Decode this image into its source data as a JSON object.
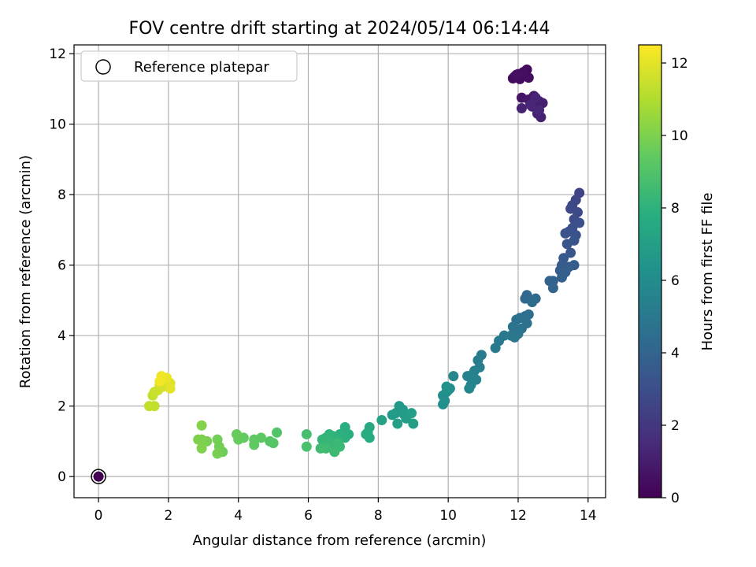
{
  "chart_data": {
    "type": "scatter",
    "title": "FOV centre drift starting at 2024/05/14 06:14:44",
    "xlabel": "Angular distance from reference (arcmin)",
    "ylabel": "Rotation from reference (arcmin)",
    "xlim": [
      -0.7,
      14.5
    ],
    "ylim": [
      -0.6,
      12.25
    ],
    "xticks": [
      0,
      2,
      4,
      6,
      8,
      10,
      12,
      14
    ],
    "yticks": [
      0,
      2,
      4,
      6,
      8,
      10,
      12
    ],
    "grid": true,
    "legend": {
      "position": "top-left",
      "entries": [
        "Reference platepar"
      ]
    },
    "colorbar": {
      "label": "Hours from first FF file",
      "range": [
        0,
        12.5
      ],
      "ticks": [
        0,
        2,
        4,
        6,
        8,
        10,
        12
      ],
      "colormap": "viridis"
    },
    "reference_point": {
      "x": 0,
      "y": 0,
      "hours": 0
    },
    "series": [
      {
        "points": [
          [
            11.9,
            11.35,
            0.1
          ],
          [
            12.0,
            11.42,
            0.15
          ],
          [
            12.1,
            11.38,
            0.2
          ],
          [
            12.2,
            11.45,
            0.25
          ],
          [
            12.25,
            11.55,
            0.3
          ],
          [
            11.85,
            11.3,
            0.35
          ],
          [
            12.05,
            11.28,
            0.4
          ],
          [
            12.3,
            11.32,
            0.45
          ],
          [
            12.15,
            11.48,
            0.5
          ],
          [
            11.95,
            11.4,
            0.55
          ],
          [
            12.1,
            10.75,
            0.7
          ],
          [
            12.3,
            10.7,
            0.8
          ],
          [
            12.45,
            10.8,
            0.9
          ],
          [
            12.6,
            10.65,
            1.0
          ],
          [
            12.7,
            10.6,
            1.05
          ],
          [
            12.4,
            10.5,
            1.1
          ],
          [
            12.55,
            10.3,
            1.15
          ],
          [
            12.65,
            10.2,
            1.2
          ],
          [
            12.1,
            10.45,
            1.25
          ],
          [
            12.5,
            10.75,
            1.3
          ],
          [
            12.35,
            10.55,
            1.35
          ],
          [
            12.6,
            10.4,
            1.4
          ]
        ]
      },
      {
        "points": [
          [
            13.75,
            8.05,
            2.5
          ],
          [
            13.65,
            7.85,
            2.6
          ],
          [
            13.55,
            7.7,
            2.7
          ],
          [
            13.5,
            7.6,
            2.75
          ],
          [
            13.7,
            7.5,
            2.8
          ],
          [
            13.6,
            7.3,
            2.9
          ],
          [
            13.75,
            7.2,
            3.0
          ],
          [
            13.55,
            7.05,
            3.05
          ],
          [
            13.45,
            6.95,
            3.1
          ],
          [
            13.35,
            6.9,
            3.15
          ],
          [
            13.65,
            6.85,
            3.2
          ],
          [
            13.6,
            6.7,
            3.25
          ],
          [
            13.4,
            6.6,
            3.3
          ],
          [
            13.5,
            6.35,
            3.4
          ],
          [
            13.3,
            6.2,
            3.5
          ],
          [
            13.25,
            6.0,
            3.55
          ],
          [
            13.6,
            6.0,
            3.6
          ],
          [
            13.45,
            5.95,
            3.65
          ],
          [
            13.2,
            5.85,
            3.7
          ],
          [
            13.35,
            5.8,
            3.75
          ],
          [
            13.25,
            5.65,
            3.8
          ],
          [
            13.0,
            5.55,
            3.9
          ],
          [
            12.9,
            5.55,
            3.95
          ],
          [
            13.0,
            5.35,
            4.0
          ]
        ]
      },
      {
        "points": [
          [
            12.25,
            5.15,
            4.2
          ],
          [
            12.2,
            5.05,
            4.25
          ],
          [
            12.5,
            5.05,
            4.3
          ],
          [
            12.4,
            4.95,
            4.35
          ],
          [
            12.3,
            4.6,
            4.45
          ],
          [
            12.2,
            4.55,
            4.5
          ],
          [
            12.05,
            4.5,
            4.55
          ],
          [
            11.95,
            4.45,
            4.6
          ],
          [
            12.25,
            4.35,
            4.65
          ],
          [
            12.1,
            4.2,
            4.7
          ],
          [
            11.95,
            4.15,
            4.75
          ],
          [
            11.85,
            4.25,
            4.8
          ],
          [
            12.0,
            4.05,
            4.85
          ],
          [
            11.8,
            4.0,
            4.9
          ],
          [
            11.9,
            3.95,
            4.95
          ],
          [
            11.6,
            4.0,
            5.0
          ],
          [
            11.45,
            3.85,
            5.05
          ],
          [
            11.35,
            3.65,
            5.1
          ],
          [
            10.95,
            3.45,
            5.2
          ],
          [
            10.85,
            3.3,
            5.25
          ],
          [
            10.9,
            3.1,
            5.3
          ],
          [
            10.75,
            3.0,
            5.4
          ],
          [
            10.7,
            2.9,
            5.45
          ],
          [
            10.55,
            2.85,
            5.5
          ],
          [
            10.8,
            2.75,
            5.55
          ],
          [
            10.65,
            2.6,
            5.6
          ],
          [
            10.6,
            2.5,
            5.65
          ],
          [
            10.15,
            2.85,
            5.7
          ]
        ]
      },
      {
        "points": [
          [
            10.05,
            2.5,
            6.0
          ],
          [
            9.95,
            2.4,
            6.05
          ],
          [
            9.85,
            2.3,
            6.1
          ],
          [
            9.9,
            2.15,
            6.15
          ],
          [
            9.85,
            2.05,
            6.2
          ],
          [
            10.0,
            2.45,
            6.25
          ],
          [
            9.95,
            2.55,
            6.3
          ],
          [
            8.6,
            2.0,
            6.6
          ],
          [
            8.7,
            1.9,
            6.7
          ],
          [
            8.5,
            1.8,
            6.75
          ],
          [
            8.4,
            1.75,
            6.8
          ],
          [
            8.75,
            1.75,
            6.85
          ],
          [
            8.8,
            1.65,
            6.9
          ],
          [
            8.95,
            1.8,
            6.95
          ],
          [
            9.0,
            1.5,
            7.0
          ],
          [
            8.55,
            1.5,
            7.05
          ],
          [
            8.1,
            1.6,
            7.15
          ]
        ]
      },
      {
        "points": [
          [
            7.75,
            1.4,
            7.5
          ],
          [
            7.7,
            1.25,
            7.55
          ],
          [
            7.75,
            1.1,
            7.6
          ],
          [
            7.65,
            1.2,
            7.65
          ],
          [
            7.05,
            1.4,
            7.8
          ],
          [
            7.15,
            1.2,
            7.85
          ],
          [
            7.05,
            1.1,
            7.9
          ],
          [
            6.9,
            1.2,
            7.95
          ],
          [
            6.85,
            1.05,
            8.0
          ],
          [
            6.7,
            1.15,
            8.05
          ],
          [
            6.6,
            1.2,
            8.1
          ],
          [
            6.5,
            1.1,
            8.15
          ],
          [
            6.4,
            1.05,
            8.2
          ],
          [
            6.55,
            0.95,
            8.25
          ],
          [
            6.7,
            0.9,
            8.3
          ],
          [
            6.85,
            0.95,
            8.35
          ],
          [
            6.9,
            0.85,
            8.4
          ],
          [
            6.75,
            0.7,
            8.45
          ],
          [
            6.5,
            0.8,
            8.5
          ],
          [
            6.35,
            0.8,
            8.55
          ],
          [
            5.95,
            1.2,
            8.7
          ],
          [
            5.95,
            0.85,
            8.8
          ],
          [
            5.1,
            1.25,
            9.0
          ],
          [
            4.9,
            1.0,
            9.1
          ],
          [
            5.0,
            0.95,
            9.15
          ]
        ]
      },
      {
        "points": [
          [
            4.65,
            1.1,
            9.3
          ],
          [
            4.45,
            1.05,
            9.35
          ],
          [
            4.45,
            0.9,
            9.4
          ],
          [
            4.15,
            1.1,
            9.45
          ],
          [
            4.0,
            1.05,
            9.5
          ],
          [
            3.95,
            1.2,
            9.55
          ],
          [
            3.55,
            0.7,
            9.7
          ],
          [
            3.4,
            1.05,
            9.75
          ],
          [
            3.45,
            0.85,
            9.8
          ],
          [
            3.4,
            0.65,
            9.85
          ],
          [
            3.1,
            1.0,
            9.9
          ],
          [
            2.95,
            1.05,
            9.95
          ],
          [
            2.85,
            1.05,
            10.0
          ],
          [
            2.95,
            0.8,
            10.05
          ],
          [
            2.95,
            1.45,
            10.1
          ]
        ]
      },
      {
        "points": [
          [
            1.45,
            2.0,
            11.3
          ],
          [
            1.6,
            2.0,
            11.35
          ],
          [
            1.55,
            2.3,
            11.4
          ],
          [
            1.6,
            2.4,
            11.45
          ],
          [
            1.7,
            2.45,
            11.5
          ],
          [
            1.75,
            2.6,
            11.6
          ],
          [
            1.85,
            2.55,
            11.7
          ],
          [
            1.95,
            2.7,
            11.8
          ],
          [
            2.05,
            2.65,
            11.9
          ],
          [
            2.05,
            2.5,
            12.0
          ],
          [
            1.95,
            2.8,
            12.1
          ],
          [
            1.8,
            2.85,
            12.2
          ],
          [
            1.75,
            2.7,
            12.3
          ]
        ]
      }
    ]
  }
}
